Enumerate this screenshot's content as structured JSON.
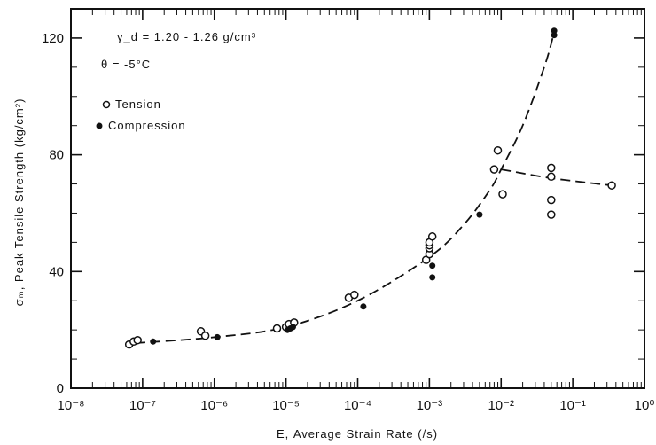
{
  "chart_data": {
    "type": "scatter",
    "x_scale": "log",
    "xlabel": "Ε, Average Strain Rate (/s)",
    "ylabel": "σₘ, Peak Tensile Strength (kg/cm²)",
    "xlim": [
      1e-08,
      1.0
    ],
    "ylim": [
      0,
      130
    ],
    "x_ticks": [
      {
        "value": 1e-08,
        "label": "10⁻⁸"
      },
      {
        "value": 1e-07,
        "label": "10⁻⁷"
      },
      {
        "value": 1e-06,
        "label": "10⁻⁶"
      },
      {
        "value": 1e-05,
        "label": "10⁻⁵"
      },
      {
        "value": 0.0001,
        "label": "10⁻⁴"
      },
      {
        "value": 0.001,
        "label": "10⁻³"
      },
      {
        "value": 0.01,
        "label": "10⁻²"
      },
      {
        "value": 0.1,
        "label": "10⁻¹"
      },
      {
        "value": 1.0,
        "label": "10⁰"
      }
    ],
    "y_ticks": [
      {
        "value": 0,
        "label": "0"
      },
      {
        "value": 40,
        "label": "40"
      },
      {
        "value": 80,
        "label": "80"
      },
      {
        "value": 120,
        "label": "120"
      }
    ],
    "legend": {
      "placement": "top-left",
      "conditions": [
        "γ_d = 1.20 - 1.26 g/cm³",
        "θ = -5°C"
      ],
      "entries": [
        {
          "marker": "open-circle",
          "label": "Tension"
        },
        {
          "marker": "filled-circle",
          "label": "Compression"
        }
      ]
    },
    "series": [
      {
        "name": "Tension",
        "marker": "open-circle",
        "points": [
          {
            "x": 6.5e-08,
            "y": 15
          },
          {
            "x": 7.5e-08,
            "y": 16
          },
          {
            "x": 8.5e-08,
            "y": 16.5
          },
          {
            "x": 6.5e-07,
            "y": 19.5
          },
          {
            "x": 7.5e-07,
            "y": 18
          },
          {
            "x": 7.5e-06,
            "y": 20.5
          },
          {
            "x": 1e-05,
            "y": 21
          },
          {
            "x": 1.1e-05,
            "y": 22
          },
          {
            "x": 1.3e-05,
            "y": 22.5
          },
          {
            "x": 7.5e-05,
            "y": 31
          },
          {
            "x": 9e-05,
            "y": 32
          },
          {
            "x": 0.0009,
            "y": 44
          },
          {
            "x": 0.001,
            "y": 46
          },
          {
            "x": 0.001,
            "y": 48
          },
          {
            "x": 0.001,
            "y": 49
          },
          {
            "x": 0.001,
            "y": 50
          },
          {
            "x": 0.0011,
            "y": 52
          },
          {
            "x": 0.008,
            "y": 75
          },
          {
            "x": 0.009,
            "y": 81.5
          },
          {
            "x": 0.0105,
            "y": 66.5
          },
          {
            "x": 0.05,
            "y": 75.5
          },
          {
            "x": 0.05,
            "y": 72.5
          },
          {
            "x": 0.05,
            "y": 64.5
          },
          {
            "x": 0.05,
            "y": 59.5
          },
          {
            "x": 0.35,
            "y": 69.5
          }
        ]
      },
      {
        "name": "Compression",
        "marker": "filled-circle",
        "points": [
          {
            "x": 1.4e-07,
            "y": 16
          },
          {
            "x": 1.1e-06,
            "y": 17.5
          },
          {
            "x": 1.05e-05,
            "y": 20
          },
          {
            "x": 1.15e-05,
            "y": 20.5
          },
          {
            "x": 1.25e-05,
            "y": 21
          },
          {
            "x": 0.00012,
            "y": 28
          },
          {
            "x": 0.0011,
            "y": 42
          },
          {
            "x": 0.0011,
            "y": 38
          },
          {
            "x": 0.005,
            "y": 59.5
          },
          {
            "x": 0.055,
            "y": 121
          },
          {
            "x": 0.055,
            "y": 122.5
          }
        ]
      }
    ],
    "trend_curves": [
      {
        "style": "dashed",
        "points": [
          {
            "x": 8e-08,
            "y": 15.5
          },
          {
            "x": 1e-06,
            "y": 17.5
          },
          {
            "x": 1e-05,
            "y": 21
          },
          {
            "x": 0.0001,
            "y": 30
          },
          {
            "x": 0.001,
            "y": 45
          },
          {
            "x": 0.003,
            "y": 56
          },
          {
            "x": 0.007,
            "y": 68
          },
          {
            "x": 0.01,
            "y": 75
          },
          {
            "x": 0.02,
            "y": 90
          },
          {
            "x": 0.04,
            "y": 110
          },
          {
            "x": 0.055,
            "y": 122
          }
        ]
      },
      {
        "style": "dashed",
        "points": [
          {
            "x": 0.01,
            "y": 75
          },
          {
            "x": 0.05,
            "y": 72
          },
          {
            "x": 0.35,
            "y": 69.5
          }
        ]
      }
    ]
  }
}
